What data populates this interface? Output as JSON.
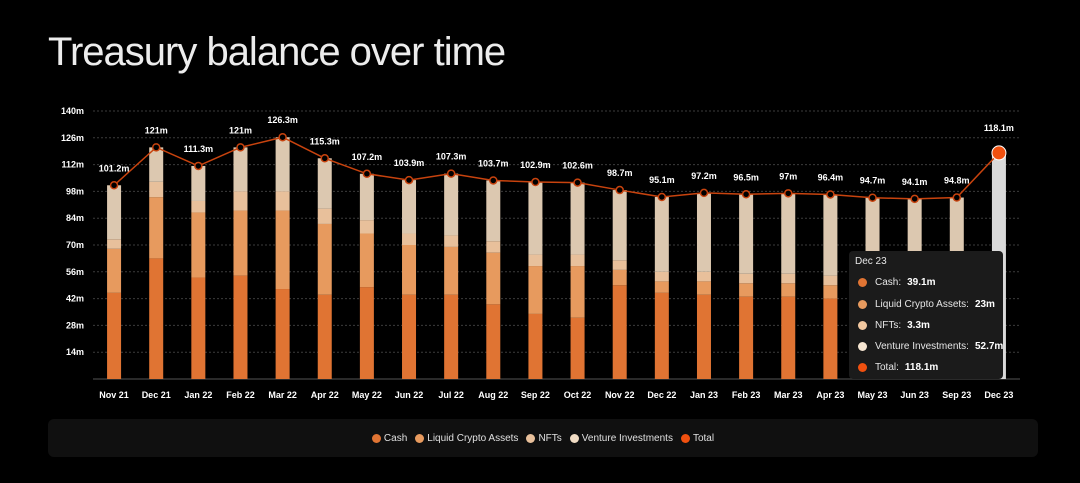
{
  "page": {
    "title": "Treasury balance over time"
  },
  "colors": {
    "cash": "#e07433",
    "liquid": "#e79a5e",
    "nfts": "#e8c09b",
    "venture": "#dcc8b0",
    "total_line": "#c8430e",
    "total_marker": "#f0500f",
    "highlight_bar": "#d9d9d9",
    "grid": "#3c3c3c"
  },
  "legend": {
    "items": [
      {
        "label": "Cash",
        "color": "#e07433"
      },
      {
        "label": "Liquid Crypto Assets",
        "color": "#e79a5e"
      },
      {
        "label": "NFTs",
        "color": "#e8c09b"
      },
      {
        "label": "Venture Investments",
        "color": "#f0dcc4"
      },
      {
        "label": "Total",
        "color": "#f0500f"
      }
    ]
  },
  "tooltip": {
    "title": "Dec 23",
    "rows": [
      {
        "label": "Cash:",
        "value": "39.1m",
        "color": "#e07433"
      },
      {
        "label": "Liquid Crypto Assets:",
        "value": "23m",
        "color": "#e79a5e"
      },
      {
        "label": "NFTs:",
        "value": "3.3m",
        "color": "#f2c8a0"
      },
      {
        "label": "Venture Investments:",
        "value": "52.7m",
        "color": "#f6e6d2"
      },
      {
        "label": "Total:",
        "value": "118.1m",
        "color": "#f0500f"
      }
    ]
  },
  "chart_data": {
    "type": "bar",
    "stacked": true,
    "categories": [
      "Nov 21",
      "Dec 21",
      "Jan 22",
      "Feb 22",
      "Mar 22",
      "Apr 22",
      "May 22",
      "Jun 22",
      "Jul 22",
      "Aug 22",
      "Sep 22",
      "Oct 22",
      "Nov 22",
      "Dec 22",
      "Jan 23",
      "Feb 23",
      "Mar 23",
      "Apr 23",
      "May 23",
      "Jun 23",
      "Sep 23",
      "Dec 23"
    ],
    "series": [
      {
        "name": "Cash",
        "values": [
          45,
          63,
          53,
          54,
          47,
          44,
          48,
          44,
          44,
          39,
          34,
          32,
          49,
          45,
          44,
          43,
          43,
          42,
          40,
          40,
          40,
          39.1
        ]
      },
      {
        "name": "Liquid Crypto Assets",
        "values": [
          23,
          32,
          34,
          34,
          41,
          37,
          28,
          26,
          25,
          27,
          25,
          27,
          8,
          6,
          7,
          7,
          7,
          7,
          6,
          5,
          5,
          23
        ]
      },
      {
        "name": "NFTs",
        "values": [
          5,
          8,
          6,
          10,
          10,
          8,
          7,
          6,
          6,
          6,
          6,
          6,
          5,
          5,
          5,
          5,
          5,
          5,
          5,
          5,
          5,
          3.3
        ]
      },
      {
        "name": "Venture Investments",
        "values": [
          28.2,
          18,
          18.3,
          23,
          28.3,
          26.3,
          24.2,
          27.9,
          32.3,
          31.7,
          37.9,
          37.6,
          36.7,
          39.1,
          41.2,
          41.5,
          42,
          42.4,
          43.7,
          44.1,
          44.8,
          52.7
        ]
      },
      {
        "name": "Total",
        "values": [
          101.2,
          121,
          111.3,
          121,
          126.3,
          115.3,
          107.2,
          103.9,
          107.3,
          103.7,
          102.9,
          102.6,
          98.7,
          95.1,
          97.2,
          96.5,
          97,
          96.4,
          94.7,
          94.1,
          94.8,
          118.1
        ]
      }
    ],
    "total_labels": [
      "101.2m",
      "121m",
      "111.3m",
      "121m",
      "126.3m",
      "115.3m",
      "107.2m",
      "103.9m",
      "107.3m",
      "103.7m",
      "102.9m",
      "102.6m",
      "98.7m",
      "95.1m",
      "97.2m",
      "96.5m",
      "97m",
      "96.4m",
      "94.7m",
      "94.1m",
      "94.8m",
      "118.1m"
    ],
    "ylim": [
      0,
      140
    ],
    "yticks": [
      14,
      28,
      42,
      56,
      70,
      84,
      98,
      112,
      126,
      140
    ],
    "ytick_labels": [
      "14m",
      "28m",
      "42m",
      "56m",
      "70m",
      "84m",
      "98m",
      "112m",
      "126m",
      "140m"
    ],
    "highlighted_category": "Dec 23",
    "grid": true,
    "legend_position": "bottom"
  }
}
